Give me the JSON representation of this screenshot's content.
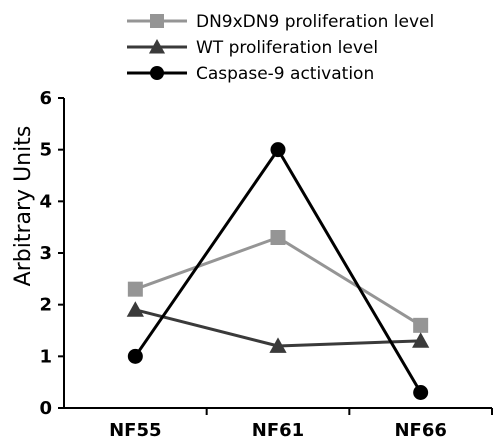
{
  "chart_data": {
    "type": "line",
    "title": "",
    "xlabel": "",
    "ylabel": "Arbitrary Units",
    "categories": [
      "NF55",
      "NF61",
      "NF66"
    ],
    "ylim": [
      0,
      6
    ],
    "yticks": [
      0,
      1,
      2,
      3,
      4,
      5,
      6
    ],
    "grid": false,
    "legend_position": "top",
    "series": [
      {
        "name": "DN9xDN9 proliferation level",
        "values": [
          2.3,
          3.3,
          1.6
        ],
        "color": "#959595",
        "marker": "square"
      },
      {
        "name": "WT proliferation level",
        "values": [
          1.9,
          1.2,
          1.3
        ],
        "color": "#3a3a3a",
        "marker": "triangle"
      },
      {
        "name": "Caspase-9 activation",
        "values": [
          1.0,
          5.0,
          0.3
        ],
        "color": "#000000",
        "marker": "circle"
      }
    ]
  }
}
